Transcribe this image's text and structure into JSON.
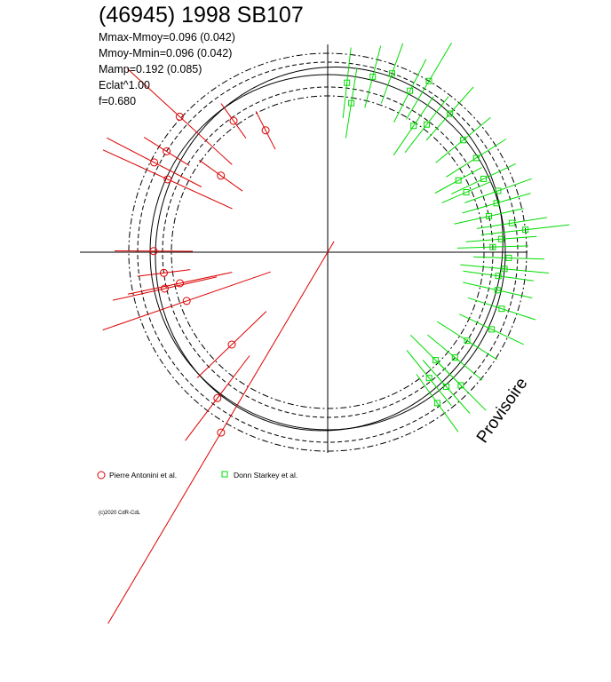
{
  "chart_data": {
    "type": "scatter",
    "title": "(46945) 1998 SB107",
    "stats": [
      "Mmax-Mmoy=0.096 (0.042)",
      "Mmoy-Mmin=0.096 (0.042)",
      "Mamp=0.192 (0.085)",
      "Eclat^1.00",
      "f=0.680"
    ],
    "legend": [
      {
        "label": "Pierre Antonini et al.",
        "color": "#dd0000",
        "marker": "circle"
      },
      {
        "label": "Donn Starkey et al.",
        "color": "#00dd00",
        "marker": "square"
      }
    ],
    "copyright": "(c)2020 CdR-CdL",
    "watermark": "Provisoire",
    "phase_axis": "polar, phase 0 at top, clockwise",
    "circles": [
      {
        "name": "mean",
        "radius": 1.0,
        "style": "solid"
      },
      {
        "name": "mean-inner",
        "radius": 0.93,
        "style": "dash"
      },
      {
        "name": "mean-outer",
        "radius": 1.07,
        "style": "dash"
      },
      {
        "name": "env-inner",
        "radius": 0.88,
        "style": "dashdot"
      },
      {
        "name": "env-outer",
        "radius": 1.12,
        "style": "dashdot"
      }
    ],
    "model_curve": {
      "amplitude": 0.048,
      "harmonics": [
        [
          2,
          0.06,
          0.7
        ]
      ]
    },
    "series": [
      {
        "name": "Pierre Antonini et al.",
        "color": "#dd0000",
        "marker": "circle",
        "points": [
          {
            "phase": 0.818,
            "r": 0.99,
            "err": 0.4
          },
          {
            "phase": 0.826,
            "r": 1.1,
            "err": 0.3
          },
          {
            "phase": 0.839,
            "r": 1.07,
            "err": 0.15
          },
          {
            "phase": 0.849,
            "r": 0.74,
            "err": 0.15
          },
          {
            "phase": 0.868,
            "r": 1.13,
            "err": 0.4
          },
          {
            "phase": 0.901,
            "r": 0.91,
            "err": 0.12
          },
          {
            "phase": 0.925,
            "r": 0.77,
            "err": 0.12
          },
          {
            "phase": 0.751,
            "r": 0.98,
            "err": 0.22
          },
          {
            "phase": 0.73,
            "r": 0.93,
            "err": 0.15
          },
          {
            "phase": 0.715,
            "r": 0.94,
            "err": 0.3
          },
          {
            "phase": 0.717,
            "r": 0.85,
            "err": 0.3
          },
          {
            "phase": 0.697,
            "r": 0.84,
            "err": 0.5
          },
          {
            "phase": 0.628,
            "r": 0.75,
            "err": 0.27
          },
          {
            "phase": 0.603,
            "r": 1.03,
            "err": 0.3
          },
          {
            "phase": 0.585,
            "r": 1.18,
            "err": 1.25
          }
        ]
      },
      {
        "name": "Donn Starkey et al.",
        "color": "#00dd00",
        "marker": "square",
        "points": [
          {
            "phase": 0.04,
            "r": 1.02,
            "err": 0.18
          },
          {
            "phase": 0.055,
            "r": 1.07,
            "err": 0.18
          },
          {
            "phase": 0.075,
            "r": 1.02,
            "err": 0.2
          },
          {
            "phase": 0.085,
            "r": 1.12,
            "err": 0.25
          },
          {
            "phase": 0.105,
            "r": 0.91,
            "err": 0.2
          },
          {
            "phase": 0.115,
            "r": 1.04,
            "err": 0.2
          },
          {
            "phase": 0.025,
            "r": 0.85,
            "err": 0.2
          },
          {
            "phase": 0.018,
            "r": 0.96,
            "err": 0.2
          },
          {
            "phase": 0.095,
            "r": 0.86,
            "err": 0.2
          },
          {
            "phase": 0.14,
            "r": 0.99,
            "err": 0.2
          },
          {
            "phase": 0.16,
            "r": 0.99,
            "err": 0.2
          },
          {
            "phase": 0.17,
            "r": 0.84,
            "err": 0.15
          },
          {
            "phase": 0.18,
            "r": 0.97,
            "err": 0.2
          },
          {
            "phase": 0.185,
            "r": 0.85,
            "err": 0.15
          },
          {
            "phase": 0.195,
            "r": 1.02,
            "err": 0.2
          },
          {
            "phase": 0.205,
            "r": 0.99,
            "err": 0.2
          },
          {
            "phase": 0.215,
            "r": 0.93,
            "err": 0.2
          },
          {
            "phase": 0.225,
            "r": 1.05,
            "err": 0.2
          },
          {
            "phase": 0.232,
            "r": 1.12,
            "err": 0.25
          },
          {
            "phase": 0.238,
            "r": 0.98,
            "err": 0.2
          },
          {
            "phase": 0.245,
            "r": 0.93,
            "err": 0.2
          },
          {
            "phase": 0.255,
            "r": 1.02,
            "err": 0.2
          },
          {
            "phase": 0.265,
            "r": 1.0,
            "err": 0.25
          },
          {
            "phase": 0.272,
            "r": 0.97,
            "err": 0.2
          },
          {
            "phase": 0.285,
            "r": 0.98,
            "err": 0.2
          },
          {
            "phase": 0.3,
            "r": 1.03,
            "err": 0.2
          },
          {
            "phase": 0.32,
            "r": 1.02,
            "err": 0.2
          },
          {
            "phase": 0.34,
            "r": 0.93,
            "err": 0.2
          },
          {
            "phase": 0.36,
            "r": 0.93,
            "err": 0.2
          },
          {
            "phase": 0.375,
            "r": 1.06,
            "err": 0.2
          },
          {
            "phase": 0.385,
            "r": 1.01,
            "err": 0.2
          },
          {
            "phase": 0.4,
            "r": 1.05,
            "err": 0.2
          },
          {
            "phase": 0.392,
            "r": 0.91,
            "err": 0.2
          },
          {
            "phase": 0.375,
            "r": 0.86,
            "err": 0.2
          }
        ]
      }
    ]
  }
}
